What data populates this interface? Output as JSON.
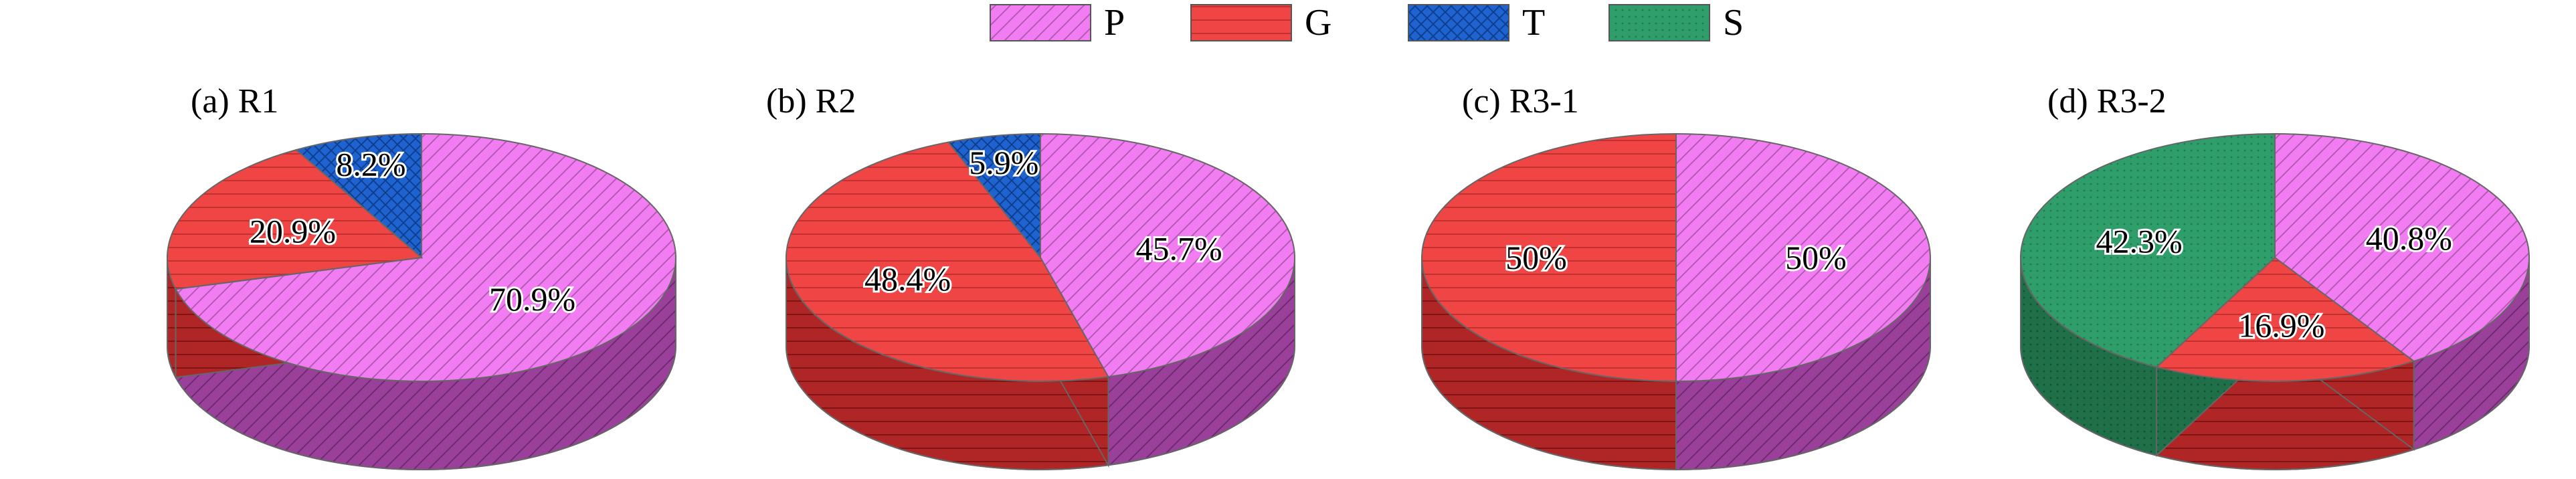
{
  "legend": [
    {
      "key": "P",
      "label": "P",
      "color": "#f27cf2",
      "pattern": "diagonal"
    },
    {
      "key": "G",
      "label": "G",
      "color": "#f04545",
      "pattern": "horizontal"
    },
    {
      "key": "T",
      "label": "T",
      "color": "#1e63d0",
      "pattern": "crosshatch"
    },
    {
      "key": "S",
      "label": "S",
      "color": "#2f9e6a",
      "pattern": "dots"
    }
  ],
  "chart_data": [
    {
      "type": "pie",
      "title": "(a) R1",
      "slices": [
        {
          "key": "P",
          "value": 70.9,
          "label": "70.9%"
        },
        {
          "key": "G",
          "value": 20.9,
          "label": "20.9%"
        },
        {
          "key": "T",
          "value": 8.2,
          "label": "8.2%"
        }
      ]
    },
    {
      "type": "pie",
      "title": "(b) R2",
      "slices": [
        {
          "key": "P",
          "value": 45.7,
          "label": "45.7%"
        },
        {
          "key": "G",
          "value": 48.4,
          "label": "48.4%"
        },
        {
          "key": "T",
          "value": 5.9,
          "label": "5.9%"
        }
      ]
    },
    {
      "type": "pie",
      "title": "(c) R3-1",
      "slices": [
        {
          "key": "P",
          "value": 50,
          "label": "50%"
        },
        {
          "key": "G",
          "value": 50,
          "label": "50%"
        }
      ]
    },
    {
      "type": "pie",
      "title": "(d) R3-2",
      "slices": [
        {
          "key": "P",
          "value": 40.8,
          "label": "40.8%"
        },
        {
          "key": "G",
          "value": 16.9,
          "label": "16.9%"
        },
        {
          "key": "S",
          "value": 42.3,
          "label": "42.3%"
        }
      ]
    }
  ]
}
